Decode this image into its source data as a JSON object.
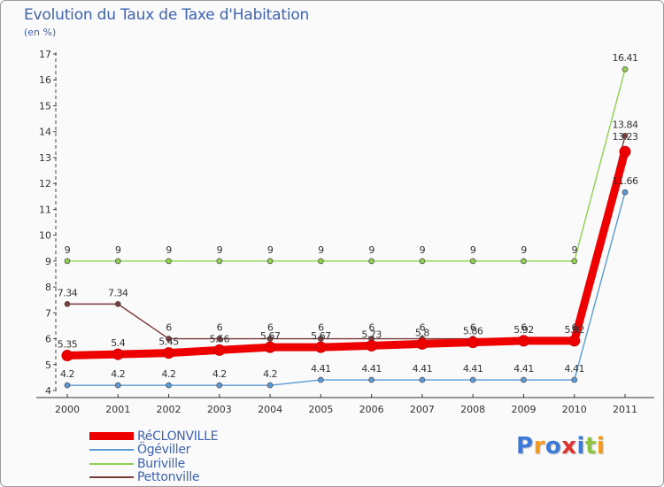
{
  "header": {
    "title": "Evolution du Taux de Taxe d'Habitation",
    "subtitle": "(en %)"
  },
  "chart_data": {
    "type": "line",
    "title": "Evolution du Taux de Taxe d'Habitation",
    "ylabel": "(en %)",
    "xlabel": "",
    "categories": [
      "2000",
      "2001",
      "2002",
      "2003",
      "2004",
      "2005",
      "2006",
      "2007",
      "2008",
      "2009",
      "2010",
      "2011"
    ],
    "ylim": [
      4,
      17
    ],
    "yticks": [
      4,
      5,
      6,
      7,
      8,
      9,
      10,
      11,
      12,
      13,
      14,
      15,
      16,
      17
    ],
    "grid": false,
    "legend_position": "bottom-left",
    "series": [
      {
        "name": "RéCLONVILLE",
        "color": "#ee0000",
        "values": [
          5.35,
          5.4,
          5.45,
          5.56,
          5.67,
          5.67,
          5.73,
          5.8,
          5.86,
          5.92,
          5.92,
          13.23
        ],
        "labels": [
          "5.35",
          "5.4",
          "5.45",
          "5.56",
          "5.67",
          "5.67",
          "5.73",
          "5.8",
          "5.86",
          "5.92",
          "5.92",
          "13.23"
        ]
      },
      {
        "name": "Ögéviller",
        "color": "#5b9bd5",
        "values": [
          4.2,
          4.2,
          4.2,
          4.2,
          4.2,
          4.41,
          4.41,
          4.41,
          4.41,
          4.41,
          4.41,
          11.66
        ],
        "labels": [
          "4.2",
          "4.2",
          "4.2",
          "4.2",
          "4.2",
          "4.41",
          "4.41",
          "4.41",
          "4.41",
          "4.41",
          "4.41",
          "11.66"
        ]
      },
      {
        "name": "Buriville",
        "color": "#8fd14f",
        "values": [
          9,
          9,
          9,
          9,
          9,
          9,
          9,
          9,
          9,
          9,
          9,
          16.41
        ],
        "labels": [
          "9",
          "9",
          "9",
          "9",
          "9",
          "9",
          "9",
          "9",
          "9",
          "9",
          "9",
          "16.41"
        ]
      },
      {
        "name": "Pettonville",
        "color": "#7b3a3a",
        "values": [
          7.34,
          7.34,
          6,
          6,
          6,
          6,
          6,
          6,
          6,
          6,
          6,
          13.84
        ],
        "labels": [
          "7.34",
          "7.34",
          "6",
          "6",
          "6",
          "6",
          "6",
          "6",
          "6",
          "6",
          "6",
          "13.84"
        ]
      }
    ]
  },
  "logo": {
    "text": "Proxiti",
    "letters": [
      "P",
      "r",
      "o",
      "x",
      "i",
      "t",
      "i"
    ],
    "colors": [
      "#3b7ad8",
      "#f29b1e",
      "#3b7ad8",
      "#e0332f",
      "#3b7ad8",
      "#8cc63f",
      "#f29b1e"
    ]
  }
}
